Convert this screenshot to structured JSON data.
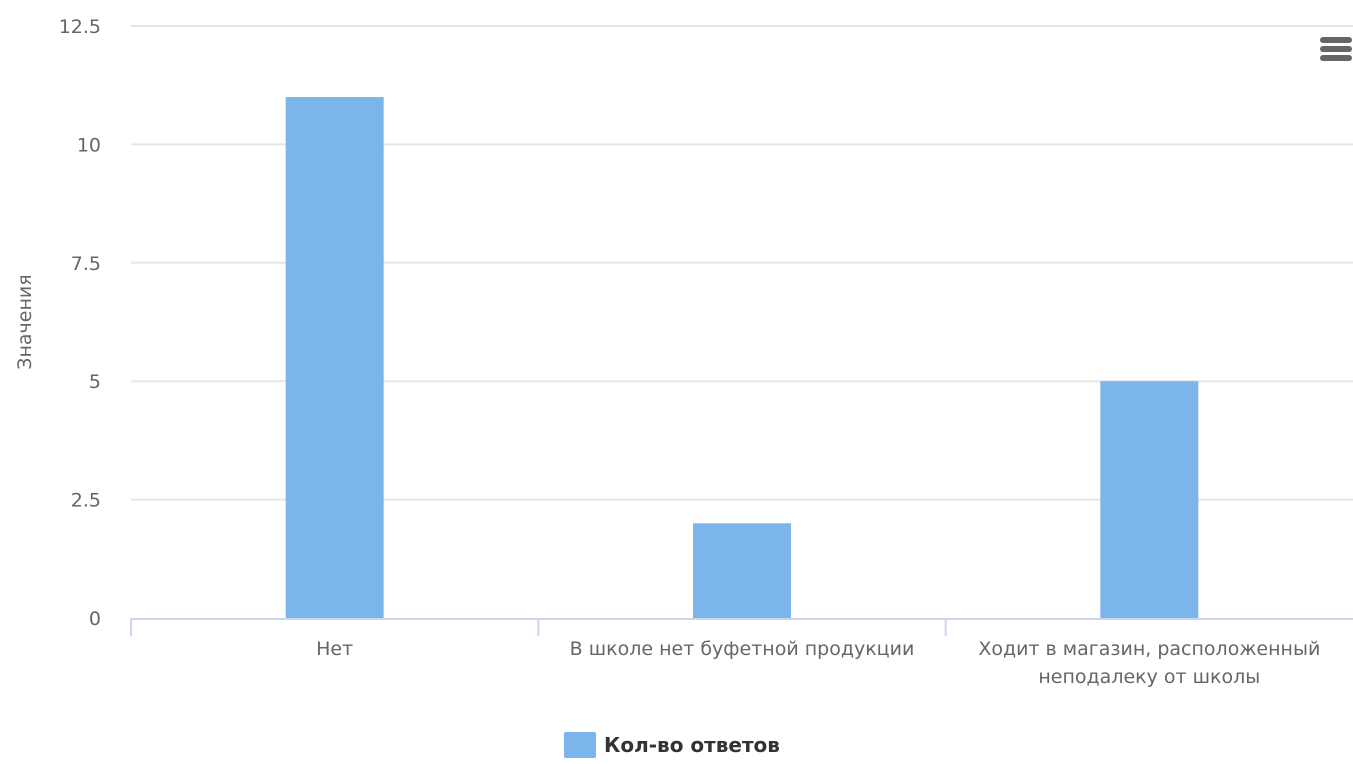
{
  "colors": {
    "bar": "#7cb5ec",
    "grid": "#e6e6e6",
    "axis_line": "#ccd6eb",
    "tick_text": "#666666",
    "menu_icon": "#666666"
  },
  "menu": {
    "icon": "hamburger-menu-icon"
  },
  "chart_data": {
    "type": "bar",
    "ylabel": "Значения",
    "ylim": [
      0,
      12.5
    ],
    "y_ticks": [
      "0",
      "2.5",
      "5",
      "7.5",
      "10",
      "12.5"
    ],
    "y_tick_values": [
      0,
      2.5,
      5,
      7.5,
      10,
      12.5
    ],
    "categories": [
      "Нет",
      "В школе нет буфетной продукции",
      "Ходит в магазин, расположенный неподалеку от школы"
    ],
    "category_label_lines": [
      [
        "Нет"
      ],
      [
        "В школе нет буфетной продукции"
      ],
      [
        "Ходит в магазин, расположенный",
        "неподалеку от школы"
      ]
    ],
    "series": [
      {
        "name": "Кол-во ответов",
        "values": [
          11,
          2,
          5
        ]
      }
    ],
    "grid": true,
    "legend_position": "bottom-center"
  }
}
